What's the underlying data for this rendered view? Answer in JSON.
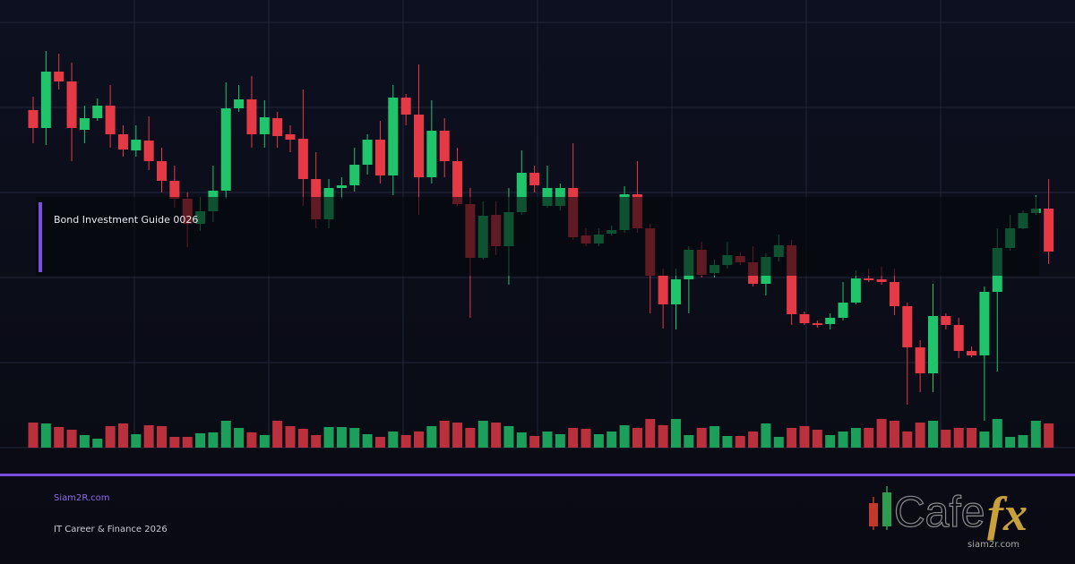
{
  "banner": {
    "title": "Bond Investment Guide 0026"
  },
  "footer": {
    "site": "Siam2R.com",
    "tagline": "IT Career & Finance 2026"
  },
  "logo": {
    "word": "Cafe",
    "accent": "fx",
    "url": "siam2r.com"
  },
  "chart_data": {
    "type": "candlestick",
    "open": [
      377,
      357,
      420,
      409,
      355,
      368,
      382,
      350,
      332,
      343,
      320,
      298,
      278,
      250,
      264,
      287,
      379,
      389,
      350,
      368,
      350,
      345,
      300,
      255,
      290,
      293,
      316,
      344,
      304,
      391,
      372,
      302,
      354,
      320,
      272,
      212,
      260,
      225,
      263,
      307,
      270,
      270,
      290,
      237,
      228,
      239,
      243,
      283,
      245,
      192,
      160,
      188,
      221,
      195,
      204,
      214,
      207,
      183,
      213,
      226,
      149,
      139,
      138,
      145,
      162,
      189,
      188,
      185,
      158,
      112,
      83,
      147,
      137,
      108,
      103,
      174,
      223,
      245,
      262,
      267
    ],
    "high": [
      392,
      443,
      440,
      430,
      382,
      390,
      405,
      360,
      360,
      370,
      335,
      315,
      285,
      280,
      315,
      408,
      405,
      415,
      388,
      375,
      360,
      400,
      330,
      300,
      302,
      335,
      350,
      365,
      405,
      395,
      428,
      388,
      368,
      335,
      290,
      275,
      275,
      290,
      332,
      315,
      315,
      295,
      340,
      245,
      245,
      248,
      292,
      320,
      250,
      200,
      200,
      225,
      230,
      210,
      230,
      218,
      225,
      217,
      238,
      232,
      152,
      142,
      150,
      185,
      198,
      200,
      202,
      200,
      162,
      120,
      183,
      150,
      145,
      113,
      180,
      245,
      260,
      265,
      282,
      300
    ],
    "low": [
      340,
      338,
      400,
      320,
      340,
      365,
      335,
      325,
      325,
      310,
      285,
      268,
      224,
      242,
      252,
      278,
      375,
      335,
      335,
      335,
      330,
      270,
      245,
      245,
      278,
      286,
      305,
      295,
      282,
      360,
      260,
      295,
      302,
      270,
      145,
      210,
      215,
      182,
      260,
      285,
      268,
      265,
      232,
      225,
      225,
      237,
      240,
      240,
      150,
      133,
      132,
      150,
      190,
      190,
      200,
      204,
      180,
      170,
      208,
      137,
      137,
      134,
      132,
      142,
      160,
      185,
      182,
      148,
      48,
      62,
      62,
      132,
      100,
      101,
      30,
      85,
      220,
      244,
      260,
      205
    ],
    "close": [
      357,
      420,
      409,
      357,
      368,
      382,
      350,
      333,
      344,
      320,
      298,
      278,
      250,
      264,
      287,
      379,
      389,
      350,
      369,
      348,
      344,
      300,
      255,
      290,
      293,
      316,
      344,
      304,
      391,
      372,
      302,
      354,
      320,
      272,
      212,
      259,
      225,
      263,
      307,
      293,
      290,
      290,
      235,
      228,
      238,
      243,
      283,
      245,
      192,
      160,
      188,
      221,
      193,
      204,
      215,
      207,
      183,
      213,
      226,
      149,
      139,
      137,
      145,
      162,
      189,
      187,
      185,
      158,
      112,
      83,
      147,
      137,
      108,
      103,
      174,
      223,
      245,
      262,
      267,
      219
    ],
    "volume": [
      28,
      27,
      23,
      20,
      14,
      10,
      24,
      27,
      15,
      25,
      24,
      12,
      12,
      16,
      17,
      30,
      22,
      17,
      14,
      30,
      24,
      21,
      14,
      23,
      23,
      22,
      15,
      12,
      18,
      14,
      18,
      24,
      30,
      28,
      22,
      30,
      28,
      24,
      17,
      13,
      18,
      15,
      22,
      21,
      15,
      18,
      25,
      22,
      32,
      25,
      32,
      14,
      22,
      24,
      13,
      13,
      18,
      27,
      12,
      22,
      24,
      20,
      14,
      18,
      22,
      22,
      32,
      30,
      18,
      28,
      30,
      20,
      22,
      22,
      18,
      32,
      12,
      14,
      30,
      27
    ],
    "ylim": [
      0,
      500
    ],
    "up_color": "#1fc46b",
    "down_color": "#e63946"
  }
}
